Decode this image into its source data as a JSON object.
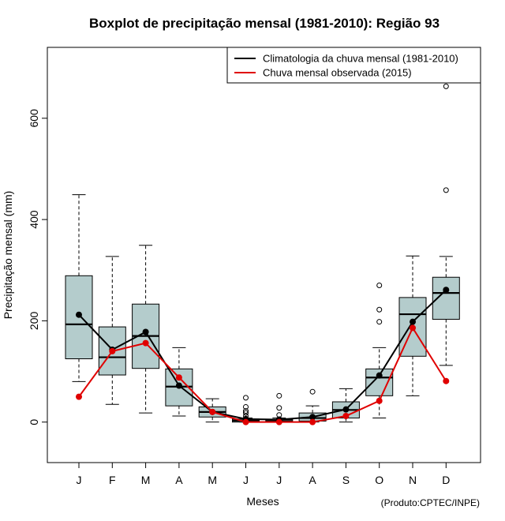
{
  "chart_data": {
    "type": "boxplot",
    "title": "Boxplot de precipitação mensal (1981-2010): Região 93",
    "xlabel": "Meses",
    "ylabel": "Precipitação mensal (mm)",
    "credit": "(Produto:CPTEC/INPE)",
    "ylim": [
      -80,
      740
    ],
    "yticks": [
      0,
      200,
      400,
      600
    ],
    "categories": [
      "J",
      "F",
      "M",
      "A",
      "M",
      "J",
      "J",
      "A",
      "S",
      "O",
      "N",
      "D"
    ],
    "box_color": "#b4cccc",
    "boxes": [
      {
        "whisker_low": 80,
        "q1": 125,
        "median": 193,
        "q3": 289,
        "whisker_high": 449,
        "outliers": []
      },
      {
        "whisker_low": 35,
        "q1": 93,
        "median": 128,
        "q3": 188,
        "whisker_high": 327,
        "outliers": []
      },
      {
        "whisker_low": 18,
        "q1": 106,
        "median": 170,
        "q3": 233,
        "whisker_high": 349,
        "outliers": []
      },
      {
        "whisker_low": 12,
        "q1": 32,
        "median": 70,
        "q3": 105,
        "whisker_high": 147,
        "outliers": []
      },
      {
        "whisker_low": 0,
        "q1": 10,
        "median": 20,
        "q3": 30,
        "whisker_high": 46,
        "outliers": []
      },
      {
        "whisker_low": 0,
        "q1": 0,
        "median": 3,
        "q3": 6,
        "whisker_high": 8,
        "outliers": [
          12,
          18,
          22,
          30,
          48
        ]
      },
      {
        "whisker_low": 0,
        "q1": 0,
        "median": 2,
        "q3": 5,
        "whisker_high": 8,
        "outliers": [
          14,
          28,
          52
        ]
      },
      {
        "whisker_low": 0,
        "q1": 2,
        "median": 8,
        "q3": 18,
        "whisker_high": 32,
        "outliers": [
          60
        ]
      },
      {
        "whisker_low": 0,
        "q1": 8,
        "median": 24,
        "q3": 40,
        "whisker_high": 66,
        "outliers": []
      },
      {
        "whisker_low": 8,
        "q1": 52,
        "median": 88,
        "q3": 105,
        "whisker_high": 147,
        "outliers": [
          198,
          222,
          270
        ]
      },
      {
        "whisker_low": 52,
        "q1": 130,
        "median": 213,
        "q3": 246,
        "whisker_high": 328,
        "outliers": []
      },
      {
        "whisker_low": 112,
        "q1": 203,
        "median": 255,
        "q3": 286,
        "whisker_high": 327,
        "outliers": [
          458,
          663
        ]
      }
    ],
    "series": [
      {
        "name": "Climatologia da chuva mensal (1981-2010)",
        "color": "#000000",
        "values": [
          212,
          143,
          178,
          72,
          20,
          6,
          5,
          10,
          25,
          92,
          198,
          261
        ]
      },
      {
        "name": "Chuva mensal observada (2015)",
        "color": "#e00000",
        "values": [
          50,
          140,
          156,
          88,
          20,
          0,
          0,
          0,
          12,
          42,
          186,
          81
        ]
      }
    ],
    "legend_position": "top-right"
  }
}
